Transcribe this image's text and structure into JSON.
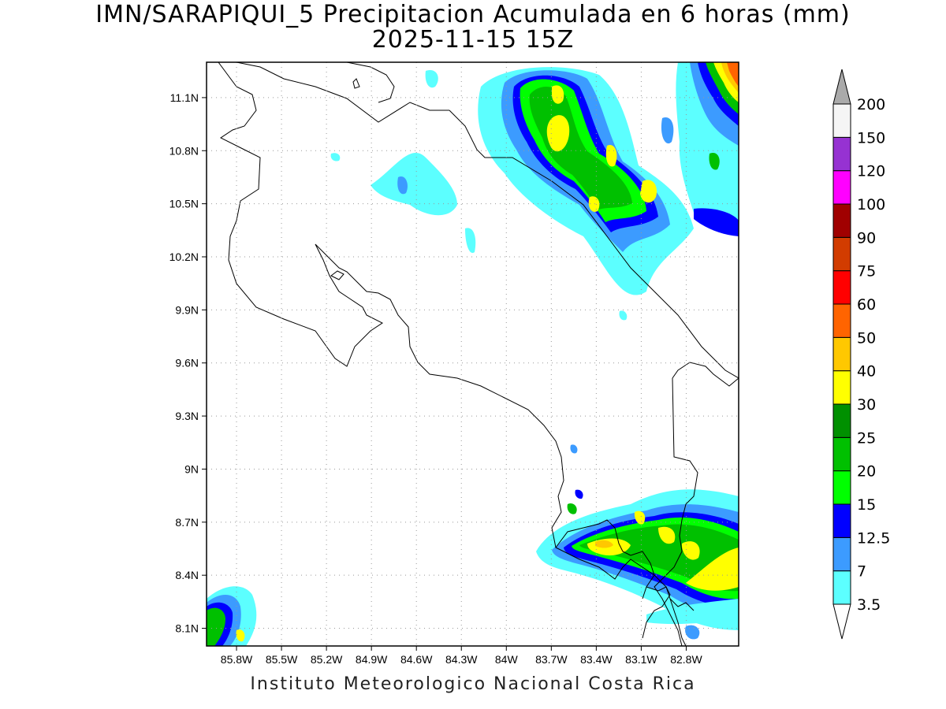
{
  "title_line1": "IMN/SARAPIQUI_5 Precipitacion Acumulada en 6 horas (mm)",
  "title_line2": "2025-11-15 15Z",
  "credit": "Instituto Meteorologico Nacional Costa Rica",
  "map": {
    "lon_range": [
      -86.0,
      -82.45
    ],
    "lat_range": [
      8.0,
      11.3
    ],
    "grid": true,
    "lon_ticks": [
      {
        "value": -85.8,
        "label": "85.8W"
      },
      {
        "value": -85.5,
        "label": "85.5W"
      },
      {
        "value": -85.2,
        "label": "85.2W"
      },
      {
        "value": -84.9,
        "label": "84.9W"
      },
      {
        "value": -84.6,
        "label": "84.6W"
      },
      {
        "value": -84.3,
        "label": "84.3W"
      },
      {
        "value": -84.0,
        "label": "84W"
      },
      {
        "value": -83.7,
        "label": "83.7W"
      },
      {
        "value": -83.4,
        "label": "83.4W"
      },
      {
        "value": -83.1,
        "label": "83.1W"
      },
      {
        "value": -82.8,
        "label": "82.8W"
      }
    ],
    "lat_ticks": [
      {
        "value": 11.1,
        "label": "11.1N"
      },
      {
        "value": 10.8,
        "label": "10.8N"
      },
      {
        "value": 10.5,
        "label": "10.5N"
      },
      {
        "value": 10.2,
        "label": "10.2N"
      },
      {
        "value": 9.9,
        "label": "9.9N"
      },
      {
        "value": 9.6,
        "label": "9.6N"
      },
      {
        "value": 9.3,
        "label": "9.3N"
      },
      {
        "value": 9.0,
        "label": "9N"
      },
      {
        "value": 8.7,
        "label": "8.7N"
      },
      {
        "value": 8.4,
        "label": "8.4N"
      },
      {
        "value": 8.1,
        "label": "8.1N"
      }
    ]
  },
  "colorbar": {
    "levels": [
      {
        "label": "3.5",
        "color": "#5cffff"
      },
      {
        "label": "7",
        "color": "#3c9bff"
      },
      {
        "label": "12.5",
        "color": "#0000ff"
      },
      {
        "label": "15",
        "color": "#00ff00"
      },
      {
        "label": "20",
        "color": "#00c000"
      },
      {
        "label": "25",
        "color": "#009000"
      },
      {
        "label": "30",
        "color": "#ffff00"
      },
      {
        "label": "40",
        "color": "#ffc800"
      },
      {
        "label": "50",
        "color": "#ff6400"
      },
      {
        "label": "60",
        "color": "#ff0000"
      },
      {
        "label": "75",
        "color": "#d23c00"
      },
      {
        "label": "90",
        "color": "#a00000"
      },
      {
        "label": "100",
        "color": "#ff00ff"
      },
      {
        "label": "120",
        "color": "#9632d2"
      },
      {
        "label": "150",
        "color": "#f5f5f5"
      },
      {
        "label": "200",
        "color": "#aaaaaa"
      }
    ],
    "below_color": "#ffffff",
    "above_color": "#aaaaaa"
  }
}
